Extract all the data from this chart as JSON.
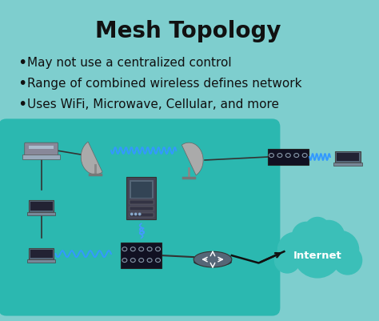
{
  "title": "Mesh Topology",
  "bullets": [
    "May not use a centralized control",
    "Range of combined wireless defines network",
    "Uses WiFi, Microwave, Cellular, and more"
  ],
  "bg_color": "#7ecece",
  "card_bg": "#8dd8d8",
  "diagram_bg": "#2bb8b0",
  "title_fontsize": 20,
  "bullet_fontsize": 11,
  "internet_label": "Internet",
  "internet_color": "#3bbfb8",
  "text_color": "#111111",
  "bullet_color": "#111111"
}
